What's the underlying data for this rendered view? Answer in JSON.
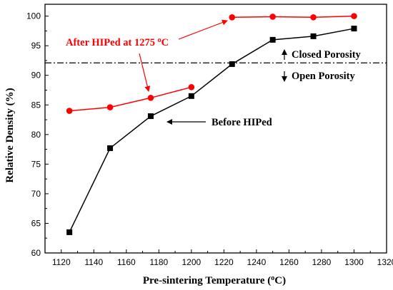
{
  "chart_data": {
    "type": "line",
    "xlabel": "Pre-sintering Temperature (",
    "xlabel_sup": "o",
    "xlabel_suffix": "C)",
    "ylabel": "Relative Density (%)",
    "xlim": [
      1110,
      1320
    ],
    "ylim": [
      60,
      102
    ],
    "xticks": [
      1120,
      1140,
      1160,
      1180,
      1200,
      1220,
      1240,
      1260,
      1280,
      1300,
      1320
    ],
    "yticks": [
      60,
      65,
      70,
      75,
      80,
      85,
      90,
      95,
      100
    ],
    "grid": false,
    "series": [
      {
        "name": "After HIPed at 1275 oC",
        "color": "#ff0000",
        "marker": "circle",
        "segments": [
          {
            "x": [
              1125,
              1150,
              1175,
              1200
            ],
            "y": [
              84.0,
              84.6,
              86.2,
              88.0
            ]
          },
          {
            "x": [
              1225,
              1250,
              1275,
              1300
            ],
            "y": [
              99.8,
              99.9,
              99.8,
              100.0
            ]
          }
        ]
      },
      {
        "name": "Before HIPed",
        "color": "#000000",
        "marker": "square",
        "segments": [
          {
            "x": [
              1125,
              1150,
              1175,
              1200,
              1225,
              1250,
              1275,
              1300
            ],
            "y": [
              63.5,
              77.7,
              83.1,
              86.5,
              91.9,
              96.0,
              96.6,
              97.9
            ]
          }
        ]
      }
    ],
    "reference_line": {
      "y": 92.1,
      "style": "dash-dot",
      "color": "#000000"
    },
    "annotations": {
      "after": {
        "text": "After HIPed at 1275 ",
        "sup": "o",
        "suffix": "C",
        "color": "#ff0000"
      },
      "before": {
        "text": "Before HIPed",
        "color": "#000000"
      },
      "closed": {
        "text": "Closed Porosity",
        "color": "#000000"
      },
      "open": {
        "text": "Open Porosity",
        "color": "#000000"
      }
    }
  }
}
